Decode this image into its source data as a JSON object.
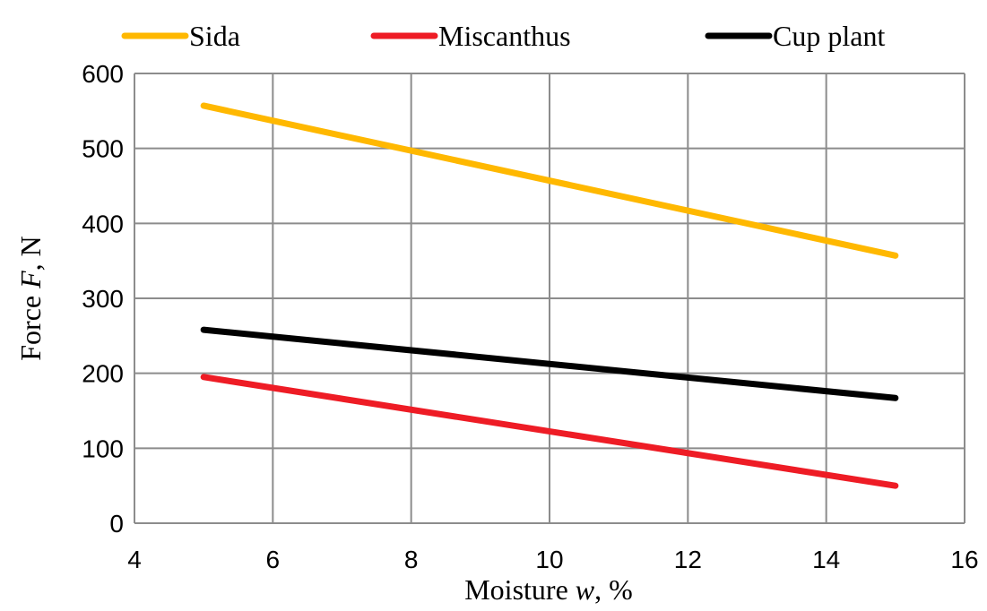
{
  "chart_data": {
    "type": "line",
    "title": "",
    "xlabel": {
      "prefix": "Moisture ",
      "var": "w",
      "suffix": ", %"
    },
    "ylabel": {
      "prefix": "Force ",
      "var": "F",
      "suffix": ", N"
    },
    "xlim": [
      4,
      16
    ],
    "ylim": [
      0,
      600
    ],
    "xticks": [
      4,
      6,
      8,
      10,
      12,
      14,
      16
    ],
    "yticks": [
      0,
      100,
      200,
      300,
      400,
      500,
      600
    ],
    "grid": true,
    "legend_position": "top",
    "series": [
      {
        "name": "Sida",
        "color": "#FFB800",
        "x": [
          5,
          15
        ],
        "y": [
          557,
          357
        ]
      },
      {
        "name": "Miscanthus",
        "color": "#EE1C25",
        "x": [
          5,
          15
        ],
        "y": [
          195,
          50
        ]
      },
      {
        "name": "Cup plant",
        "color": "#000000",
        "x": [
          5,
          15
        ],
        "y": [
          258,
          167
        ]
      }
    ]
  }
}
